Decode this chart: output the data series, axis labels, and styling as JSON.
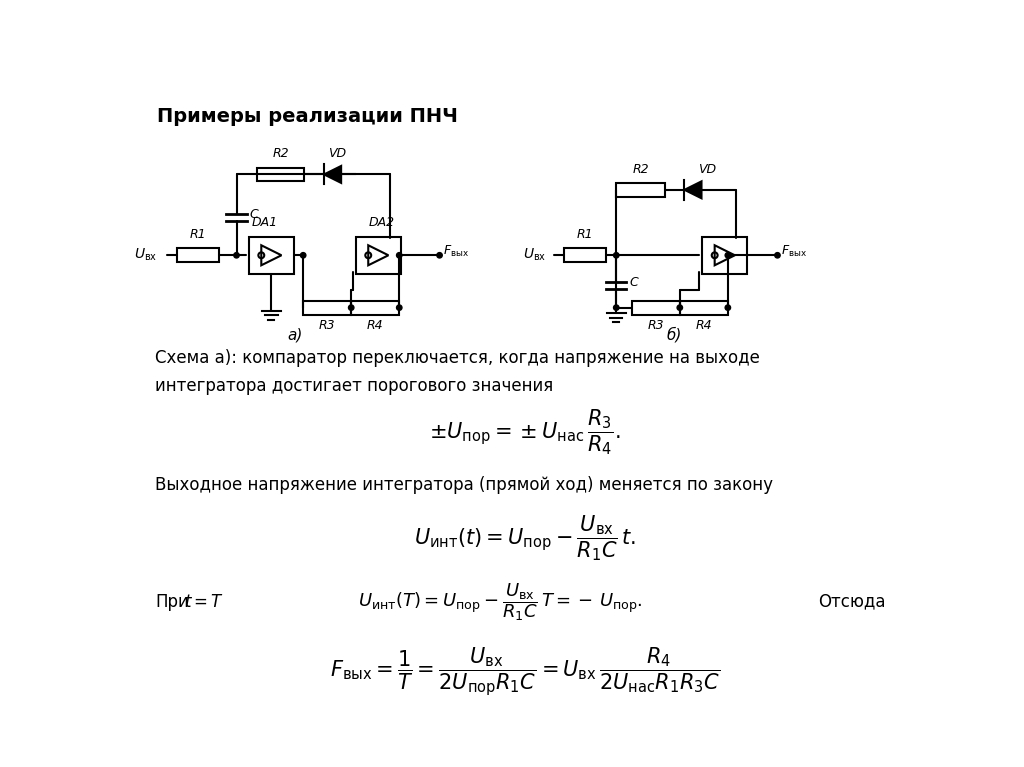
{
  "title": "Примеры реализации ПНЧ",
  "background_color": "#ffffff",
  "text_color": "#000000",
  "schema_a_label": "а)",
  "schema_b_label": "б)",
  "description_line1": "Схема а): компаратор переключается, когда напряжение на выходе",
  "description_line2": "интегратора достигает порогового значения",
  "description2": "Выходное напряжение интегратора (прямой ход) меняется по закону",
  "line3_part1": "При",
  "line3_otsyuda": "Отсюда"
}
